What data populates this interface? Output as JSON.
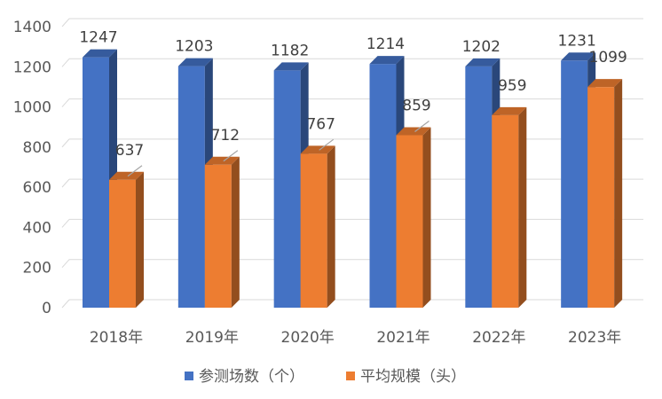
{
  "chart_data": {
    "type": "bar",
    "style": "3d-clustered-column",
    "categories": [
      "2018年",
      "2019年",
      "2020年",
      "2021年",
      "2022年",
      "2023年"
    ],
    "series": [
      {
        "name": "参测场数（个）",
        "color": "#4472C4",
        "values": [
          1247,
          1203,
          1182,
          1214,
          1202,
          1231
        ]
      },
      {
        "name": "平均规模（头）",
        "color": "#ED7D31",
        "values": [
          637,
          712,
          767,
          859,
          959,
          1099
        ]
      }
    ],
    "ylim": [
      0,
      1400
    ],
    "yticks": [
      0,
      200,
      400,
      600,
      800,
      1000,
      1200,
      1400
    ],
    "grid": true,
    "legend_position": "bottom",
    "title": "",
    "xlabel": "",
    "ylabel": ""
  }
}
